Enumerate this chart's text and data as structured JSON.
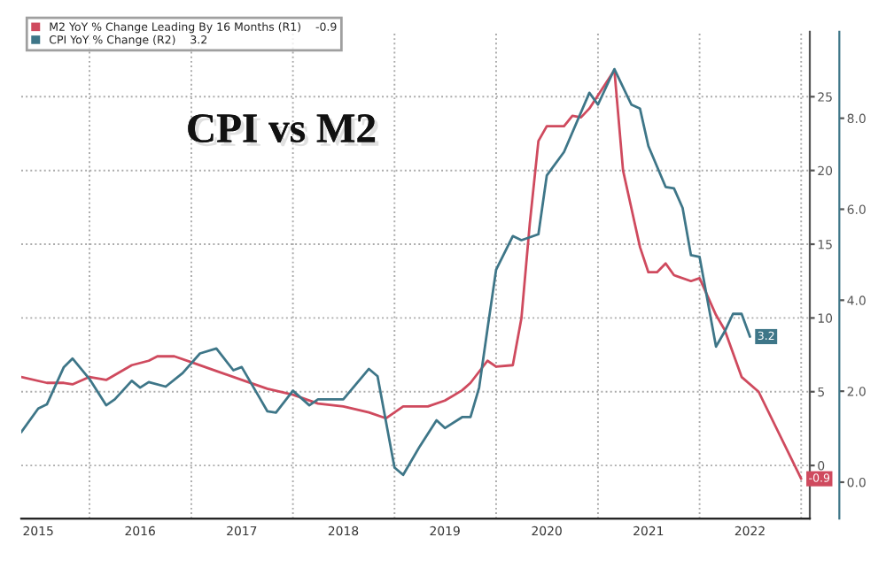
{
  "chart_data": {
    "type": "line",
    "title": "CPI vs M2",
    "xlim": [
      "2015-05",
      "2023-02"
    ],
    "xticks": [
      {
        "value": "2015-07",
        "label": "2015"
      },
      {
        "value": "2016-01",
        "label": null
      },
      {
        "value": "2016-07",
        "label": "2016"
      },
      {
        "value": "2017-01",
        "label": null
      },
      {
        "value": "2017-07",
        "label": "2017"
      },
      {
        "value": "2018-01",
        "label": null
      },
      {
        "value": "2018-07",
        "label": "2018"
      },
      {
        "value": "2019-01",
        "label": null
      },
      {
        "value": "2019-07",
        "label": "2019"
      },
      {
        "value": "2020-01",
        "label": null
      },
      {
        "value": "2020-07",
        "label": "2020"
      },
      {
        "value": "2021-01",
        "label": null
      },
      {
        "value": "2021-07",
        "label": "2021"
      },
      {
        "value": "2022-01",
        "label": null
      },
      {
        "value": "2022-07",
        "label": "2022"
      },
      {
        "value": "2023-01",
        "label": null
      }
    ],
    "ylim": [
      -3.6,
      29.4
    ],
    "yticks": [
      0,
      5,
      10,
      15,
      20,
      25
    ],
    "y2lim": [
      -0.8,
      9.9
    ],
    "y2ticks": [
      {
        "value": 0,
        "label": "0.0"
      },
      {
        "value": 2,
        "label": "2.0"
      },
      {
        "value": 4,
        "label": "4.0"
      },
      {
        "value": 6,
        "label": "6.0"
      },
      {
        "value": 8,
        "label": "8.0"
      }
    ],
    "grid": true,
    "legend": "top left",
    "series": [
      {
        "name": "M2 YoY % Change Leading By 16 Months (R1)    -0.9",
        "color": "#cf4a5e",
        "axis": "y",
        "value_labels": [
          null,
          null,
          null,
          null,
          null,
          null,
          null,
          null,
          null,
          null,
          null,
          null,
          null,
          null,
          null,
          null,
          null,
          null,
          null,
          null,
          null,
          null,
          null,
          null,
          null,
          null,
          null,
          null,
          null,
          null,
          null,
          null,
          null,
          null,
          null,
          null,
          null,
          null,
          null,
          null,
          null,
          null,
          null,
          null,
          null,
          null,
          null,
          null,
          "-0.9"
        ],
        "x": [
          "2015-05",
          "2015-08",
          "2015-10",
          "2015-11",
          "2016-01",
          "2016-03",
          "2016-06",
          "2016-08",
          "2016-09",
          "2016-11",
          "2017-01",
          "2017-04",
          "2017-07",
          "2017-10",
          "2018-01",
          "2018-04",
          "2018-07",
          "2018-10",
          "2018-12",
          "2019-02",
          "2019-05",
          "2019-07",
          "2019-09",
          "2019-10",
          "2019-12",
          "2020-01",
          "2020-03",
          "2020-04",
          "2020-05",
          "2020-06",
          "2020-07",
          "2020-09",
          "2020-10",
          "2020-11",
          "2020-12",
          "2021-03",
          "2021-04",
          "2021-06",
          "2021-07",
          "2021-08",
          "2021-09",
          "2021-10",
          "2021-12",
          "2022-01",
          "2022-03",
          "2022-04",
          "2022-06",
          "2022-08",
          "2023-01"
        ],
        "values": [
          6.0,
          5.6,
          5.6,
          5.5,
          6.0,
          5.8,
          6.8,
          7.1,
          7.4,
          7.4,
          7.0,
          6.4,
          5.8,
          5.2,
          4.8,
          4.2,
          4.0,
          3.6,
          3.2,
          4.0,
          4.0,
          4.4,
          5.1,
          5.6,
          7.1,
          6.7,
          6.8,
          10.0,
          16.4,
          22.0,
          23.0,
          23.0,
          23.7,
          23.6,
          24.2,
          26.8,
          20.0,
          14.8,
          13.1,
          13.1,
          13.7,
          12.9,
          12.5,
          12.7,
          10.2,
          9.2,
          6.0,
          5.0,
          -0.9
        ]
      },
      {
        "name": "CPI YoY % Change (R2)    3.2",
        "color": "#3e7688",
        "axis": "y2",
        "value_labels": [
          null,
          null,
          null,
          null,
          null,
          null,
          null,
          null,
          null,
          null,
          null,
          null,
          null,
          null,
          null,
          null,
          null,
          null,
          null,
          null,
          null,
          null,
          null,
          null,
          null,
          null,
          null,
          null,
          null,
          null,
          null,
          null,
          null,
          null,
          null,
          null,
          null,
          null,
          null,
          null,
          null,
          null,
          null,
          null,
          null,
          null,
          null,
          null,
          null,
          null,
          null,
          null,
          null,
          null,
          null,
          null,
          "3.2"
        ],
        "x": [
          "2015-05",
          "2015-07",
          "2015-08",
          "2015-10",
          "2015-11",
          "2016-01",
          "2016-03",
          "2016-04",
          "2016-06",
          "2016-07",
          "2016-08",
          "2016-10",
          "2016-12",
          "2017-02",
          "2017-04",
          "2017-06",
          "2017-07",
          "2017-09",
          "2017-10",
          "2017-11",
          "2018-01",
          "2018-03",
          "2018-04",
          "2018-07",
          "2018-10",
          "2018-11",
          "2019-01",
          "2019-02",
          "2019-04",
          "2019-06",
          "2019-07",
          "2019-09",
          "2019-10",
          "2019-11",
          "2019-12",
          "2020-01",
          "2020-03",
          "2020-04",
          "2020-06",
          "2020-07",
          "2020-09",
          "2020-12",
          "2021-01",
          "2021-03",
          "2021-05",
          "2021-06",
          "2021-07",
          "2021-09",
          "2021-10",
          "2021-11",
          "2021-12",
          "2022-01",
          "2022-03",
          "2022-04",
          "2022-05",
          "2022-06",
          "2022-07"
        ],
        "values": [
          1.1,
          1.62,
          1.71,
          2.53,
          2.72,
          2.27,
          1.69,
          1.82,
          2.23,
          2.08,
          2.2,
          2.1,
          2.4,
          2.83,
          2.94,
          2.46,
          2.53,
          1.88,
          1.56,
          1.53,
          2.01,
          1.69,
          1.82,
          1.82,
          2.49,
          2.33,
          0.32,
          0.16,
          0.78,
          1.36,
          1.19,
          1.43,
          1.43,
          2.08,
          3.37,
          4.67,
          5.41,
          5.32,
          5.45,
          6.74,
          7.26,
          8.56,
          8.3,
          9.08,
          8.3,
          8.21,
          7.39,
          6.49,
          6.46,
          6.03,
          4.99,
          4.95,
          2.98,
          3.31,
          3.7,
          3.7,
          3.2
        ]
      }
    ]
  }
}
